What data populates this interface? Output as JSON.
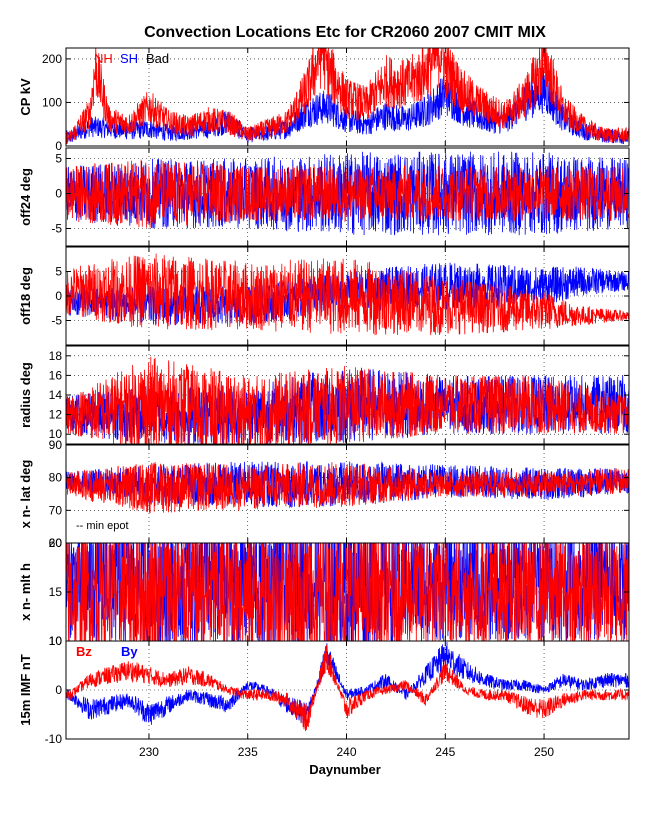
{
  "chart_data": {
    "type": "line",
    "title": "Convection Locations Etc for CR2060 2007 CMIT MIX",
    "xlabel": "Daynumber",
    "xlim": [
      225.8,
      254.3
    ],
    "xticks": [
      230,
      235,
      240,
      245,
      250
    ],
    "xtick_labels": [
      "230",
      "235",
      "240",
      "245",
      "250"
    ],
    "colors": {
      "nh": "#ff0000",
      "sh": "#0000ff",
      "bad": "#000000",
      "frame": "#000000",
      "grid": "#000000"
    },
    "panels": [
      {
        "id": "cp",
        "ylabel": "CP kV",
        "ylim": [
          0,
          225
        ],
        "yticks": [
          0,
          100,
          200
        ],
        "ytick_labels": [
          "0",
          "100",
          "200"
        ],
        "legend": [
          "NH",
          "SH",
          "Bad"
        ],
        "legend_colors": [
          "#ff0000",
          "#0000ff",
          "#000000"
        ],
        "series": [
          {
            "name": "SH",
            "color": "#0000ff",
            "x": [
              226,
              227,
              228,
              229,
              230,
              231,
              232,
              233,
              234,
              235,
              236,
              237,
              238,
              239,
              240,
              241,
              242,
              243,
              244,
              245,
              246,
              247,
              248,
              249,
              250,
              251,
              252,
              253,
              254
            ],
            "y": [
              20,
              45,
              40,
              35,
              40,
              30,
              35,
              40,
              55,
              25,
              30,
              40,
              80,
              90,
              60,
              50,
              70,
              60,
              80,
              120,
              80,
              60,
              55,
              100,
              130,
              60,
              35,
              25,
              20
            ]
          },
          {
            "name": "NH",
            "color": "#ff0000",
            "x": [
              226,
              227,
              227.3,
              228,
              229,
              230,
              231,
              232,
              233,
              234,
              235,
              236,
              237,
              238,
              238.8,
              239,
              240,
              241,
              242,
              243,
              244,
              244.8,
              245,
              246,
              247,
              248,
              249,
              250,
              250,
              251,
              252,
              253,
              254
            ],
            "y": [
              20,
              75,
              180,
              60,
              50,
              90,
              55,
              45,
              60,
              55,
              25,
              40,
              55,
              130,
              225,
              180,
              110,
              95,
              150,
              140,
              170,
              225,
              180,
              120,
              90,
              70,
              110,
              190,
              200,
              80,
              45,
              25,
              25
            ]
          }
        ]
      },
      {
        "id": "off24",
        "ylabel": "off24 deg",
        "ylim": [
          -7.5,
          6.5
        ],
        "yticks": [
          -5,
          0,
          5
        ],
        "ytick_labels": [
          "-5",
          "0",
          "5"
        ],
        "series": [
          {
            "name": "SH",
            "color": "#0000ff",
            "x": [
              226,
              230,
              235,
              240,
              245,
              250,
              254
            ],
            "y_mean": [
              0,
              0,
              0,
              0,
              0,
              0,
              0
            ],
            "y_spread": [
              4,
              5,
              5,
              6,
              6,
              6,
              5
            ]
          },
          {
            "name": "NH",
            "color": "#ff0000",
            "x": [
              226,
              230,
              235,
              240,
              245,
              250,
              254
            ],
            "y_mean": [
              0,
              0,
              0,
              0,
              0,
              0,
              0
            ],
            "y_spread": [
              4,
              5,
              4,
              4,
              4,
              4,
              4
            ]
          }
        ]
      },
      {
        "id": "off18",
        "ylabel": "off18 deg",
        "ylim": [
          -10,
          10
        ],
        "yticks": [
          -5,
          0,
          5
        ],
        "ytick_labels": [
          "-5",
          "0",
          "5"
        ],
        "series": [
          {
            "name": "SH",
            "color": "#0000ff",
            "x": [
              226,
              230,
              235,
              240,
              245,
              250,
              252,
              254
            ],
            "y_mean": [
              -1,
              -2,
              -2,
              1,
              2,
              2,
              3,
              3
            ],
            "y_spread": [
              3,
              4,
              4,
              4,
              5,
              4,
              3,
              2
            ]
          },
          {
            "name": "NH",
            "color": "#ff0000",
            "x": [
              226,
              230,
              235,
              240,
              245,
              250,
              252,
              254
            ],
            "y_mean": [
              1,
              1,
              0,
              0,
              -2,
              -3,
              -4,
              -4
            ],
            "y_spread": [
              5,
              8,
              7,
              8,
              6,
              4,
              2,
              1
            ]
          }
        ]
      },
      {
        "id": "radius",
        "ylabel": "radius deg",
        "ylim": [
          9,
          19
        ],
        "yticks": [
          10,
          12,
          14,
          16,
          18
        ],
        "ytick_labels": [
          "10",
          "12",
          "14",
          "16",
          "18"
        ],
        "series": [
          {
            "name": "SH",
            "color": "#0000ff",
            "x": [
              226,
              230,
              235,
              240,
              245,
              250,
              254
            ],
            "y_mean": [
              12,
              12,
              12,
              13,
              13,
              13,
              13
            ],
            "y_spread": [
              2,
              3,
              3,
              4,
              3,
              3,
              3
            ]
          },
          {
            "name": "NH",
            "color": "#ff0000",
            "x": [
              226,
              230,
              235,
              240,
              245,
              250,
              254
            ],
            "y_mean": [
              12,
              13,
              12,
              13,
              13,
              13,
              12
            ],
            "y_spread": [
              2,
              5,
              4,
              4,
              3,
              3,
              2
            ]
          }
        ]
      },
      {
        "id": "lat",
        "ylabel": "x n- lat deg",
        "ylim": [
          60,
          90
        ],
        "yticks": [
          60,
          70,
          80,
          90
        ],
        "ytick_labels": [
          "60",
          "70",
          "80",
          "90"
        ],
        "annotation": "-- min epot",
        "series": [
          {
            "name": "SH",
            "color": "#0000ff",
            "x": [
              226,
              230,
              235,
              240,
              245,
              250,
              254
            ],
            "y_mean": [
              79,
              78,
              78,
              78,
              79,
              78,
              79
            ],
            "y_spread": [
              3,
              6,
              7,
              7,
              5,
              5,
              4
            ]
          },
          {
            "name": "NH",
            "color": "#ff0000",
            "x": [
              226,
              230,
              235,
              240,
              245,
              250,
              254
            ],
            "y_mean": [
              78,
              77,
              77,
              78,
              78,
              78,
              79
            ],
            "y_spread": [
              4,
              8,
              7,
              7,
              4,
              4,
              4
            ]
          }
        ]
      },
      {
        "id": "mlt",
        "ylabel": "x n- mlt h",
        "ylim": [
          10,
          20
        ],
        "yticks": [
          10,
          15,
          20
        ],
        "ytick_labels": [
          "10",
          "15",
          "20"
        ],
        "series": [
          {
            "name": "SH",
            "color": "#0000ff",
            "x": [
              226,
              230,
              235,
              240,
              245,
              250,
              254
            ],
            "y_mean": [
              16,
              16,
              16,
              16,
              16,
              16,
              16
            ],
            "y_spread": [
              6,
              7,
              7,
              7,
              6,
              6,
              6
            ]
          },
          {
            "name": "NH",
            "color": "#ff0000",
            "x": [
              226,
              230,
              235,
              240,
              245,
              250,
              254
            ],
            "y_mean": [
              15,
              15,
              15,
              15,
              15,
              15,
              15
            ],
            "y_spread": [
              6,
              7,
              7,
              7,
              6,
              6,
              6
            ]
          }
        ]
      },
      {
        "id": "imf",
        "ylabel": "15m IMF nT",
        "ylim": [
          -10,
          10
        ],
        "yticks": [
          -10,
          0,
          10
        ],
        "ytick_labels": [
          "-10",
          "0",
          "10"
        ],
        "legend": [
          "Bz",
          "By"
        ],
        "legend_colors": [
          "#ff0000",
          "#0000ff"
        ],
        "series": [
          {
            "name": "By",
            "color": "#0000ff",
            "x": [
              226,
              227,
              228,
              229,
              230,
              231,
              232,
              233,
              234,
              235,
              236,
              237,
              238,
              239,
              240,
              241,
              242,
              243,
              244,
              245,
              246,
              247,
              248,
              249,
              250,
              251,
              252,
              253,
              254
            ],
            "y": [
              -1,
              -4,
              -3,
              -2,
              -5,
              -3,
              -1,
              -2,
              -3,
              1,
              0,
              -3,
              -5,
              7,
              -1,
              0,
              2,
              -1,
              3,
              7,
              4,
              2,
              1,
              1,
              0,
              2,
              1,
              2,
              2
            ]
          },
          {
            "name": "Bz",
            "color": "#ff0000",
            "x": [
              226,
              227,
              228,
              229,
              230,
              231,
              232,
              233,
              234,
              235,
              236,
              237,
              238,
              239,
              240,
              241,
              242,
              243,
              244,
              245,
              246,
              247,
              248,
              249,
              250,
              251,
              252,
              253,
              254
            ],
            "y": [
              -1,
              2,
              3,
              4,
              3,
              2,
              3,
              2,
              0,
              -1,
              -1,
              -2,
              -6,
              7,
              -4,
              -1,
              0,
              1,
              -2,
              4,
              0,
              -1,
              -1,
              -3,
              -4,
              -2,
              -1,
              -1,
              -1
            ]
          }
        ]
      }
    ]
  }
}
